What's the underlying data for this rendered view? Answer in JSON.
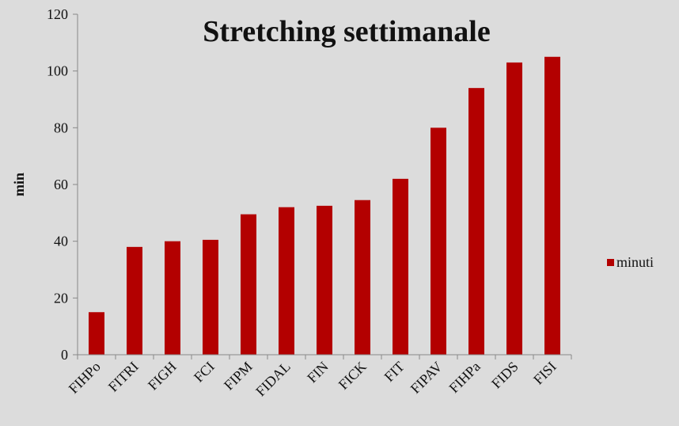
{
  "chart_data": {
    "type": "bar",
    "title": "Stretching settimanale",
    "xlabel": "",
    "ylabel": "min",
    "ylim": [
      0,
      120
    ],
    "ytick_step": 20,
    "categories": [
      "FIHPo",
      "FITRI",
      "FIGH",
      "FCI",
      "FIPM",
      "FIDAL",
      "FIN",
      "FICK",
      "FIT",
      "FIPAV",
      "FIHPa",
      "FIDS",
      "FISI"
    ],
    "series": [
      {
        "name": "minuti",
        "color": "#b30000",
        "values": [
          15,
          38,
          40,
          40.5,
          49.5,
          52,
          52.5,
          54.5,
          62,
          80,
          94,
          103,
          105
        ]
      }
    ],
    "grid": false,
    "legend_position": "right"
  }
}
